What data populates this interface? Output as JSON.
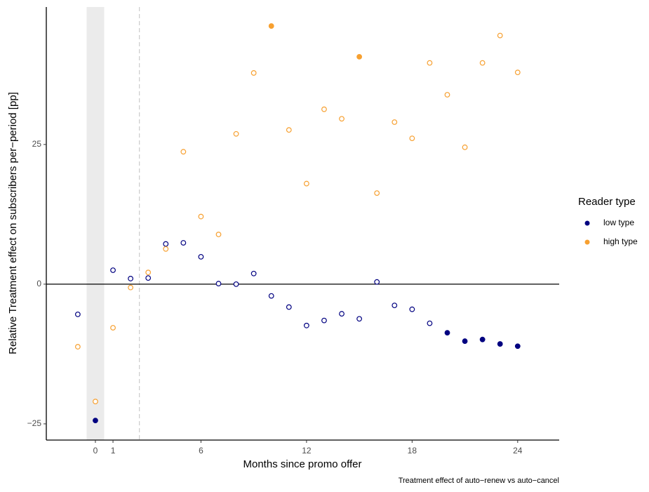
{
  "chart_data": {
    "type": "scatter",
    "x_label": "Months since promo offer",
    "y_label": "Relative Treatment effect on subscribers per−period [pp]",
    "caption": "Treatment effect of auto−renew vs auto−cancel",
    "legend_title": "Reader type",
    "legend_position": "right",
    "x": [
      -1,
      0,
      1,
      2,
      3,
      4,
      5,
      6,
      7,
      8,
      9,
      10,
      11,
      12,
      13,
      14,
      15,
      16,
      17,
      18,
      19,
      20,
      21,
      22,
      23,
      24
    ],
    "series": [
      {
        "name": "low type",
        "color": "#000080",
        "values": [
          -5.4,
          -24.4,
          2.5,
          1.0,
          1.1,
          7.2,
          7.4,
          4.9,
          0.1,
          0.0,
          1.9,
          -2.1,
          -4.1,
          -7.4,
          -6.5,
          -5.3,
          -6.2,
          0.4,
          -3.8,
          -4.5,
          -7.0,
          -8.7,
          -10.2,
          -9.9,
          -10.7,
          -11.1
        ],
        "filled": [
          false,
          true,
          false,
          false,
          false,
          false,
          false,
          false,
          false,
          false,
          false,
          false,
          false,
          false,
          false,
          false,
          false,
          false,
          false,
          false,
          false,
          true,
          true,
          true,
          true,
          true
        ]
      },
      {
        "name": "high type",
        "color": "#f7a030",
        "values": [
          -11.2,
          -21.0,
          -7.8,
          -0.6,
          2.1,
          6.3,
          23.7,
          12.1,
          8.9,
          26.9,
          37.8,
          46.2,
          27.6,
          18.0,
          31.3,
          29.6,
          40.7,
          16.3,
          29.0,
          26.1,
          39.6,
          33.9,
          24.5,
          39.6,
          44.5,
          37.9
        ],
        "filled": [
          false,
          false,
          false,
          false,
          false,
          false,
          false,
          false,
          false,
          false,
          false,
          true,
          false,
          false,
          false,
          false,
          true,
          false,
          false,
          false,
          false,
          false,
          false,
          false,
          false,
          false
        ]
      }
    ],
    "xlim": [
      -2.79,
      26.36
    ],
    "ylim": [
      -27.9,
      49.6
    ],
    "xticks": [
      0,
      1,
      6,
      12,
      18,
      24
    ],
    "yticks": [
      {
        "value": -25,
        "label": "−25"
      },
      0,
      25
    ],
    "grid": false,
    "hline": 0,
    "vline": 2.5,
    "shaded_band": [
      -0.5,
      0.5
    ]
  }
}
